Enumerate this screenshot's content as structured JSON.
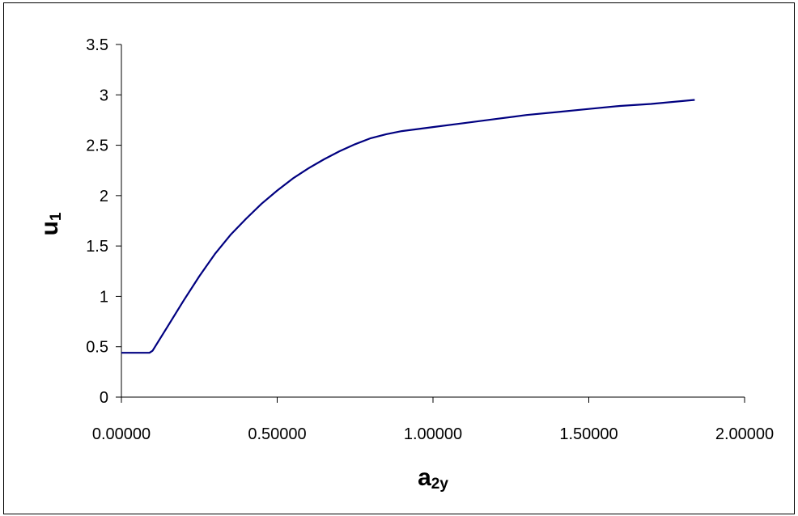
{
  "chart_data": {
    "type": "line",
    "title": "",
    "xlabel": {
      "main": "a",
      "sub": "2y"
    },
    "ylabel": {
      "main": "u",
      "sub": "1"
    },
    "xlim": [
      0,
      2
    ],
    "ylim": [
      0,
      3.5
    ],
    "x_ticks": [
      0,
      0.5,
      1,
      1.5,
      2
    ],
    "x_tick_labels": [
      "0.00000",
      "0.50000",
      "1.00000",
      "1.50000",
      "2.00000"
    ],
    "y_ticks": [
      0,
      0.5,
      1,
      1.5,
      2,
      2.5,
      3,
      3.5
    ],
    "y_tick_labels": [
      "0",
      "0.5",
      "1",
      "1.5",
      "2",
      "2.5",
      "3",
      "3.5"
    ],
    "grid": false,
    "legend": "none",
    "series": [
      {
        "color": "#000080",
        "x": [
          0.0,
          0.09,
          0.1,
          0.15,
          0.2,
          0.25,
          0.3,
          0.35,
          0.4,
          0.45,
          0.5,
          0.55,
          0.6,
          0.65,
          0.7,
          0.75,
          0.8,
          0.85,
          0.9,
          0.95,
          1.0,
          1.1,
          1.2,
          1.3,
          1.4,
          1.5,
          1.6,
          1.7,
          1.84
        ],
        "y": [
          0.44,
          0.44,
          0.46,
          0.71,
          0.96,
          1.2,
          1.42,
          1.61,
          1.77,
          1.92,
          2.05,
          2.17,
          2.27,
          2.36,
          2.44,
          2.51,
          2.57,
          2.61,
          2.64,
          2.66,
          2.68,
          2.72,
          2.76,
          2.8,
          2.83,
          2.86,
          2.89,
          2.91,
          2.95
        ]
      }
    ]
  }
}
